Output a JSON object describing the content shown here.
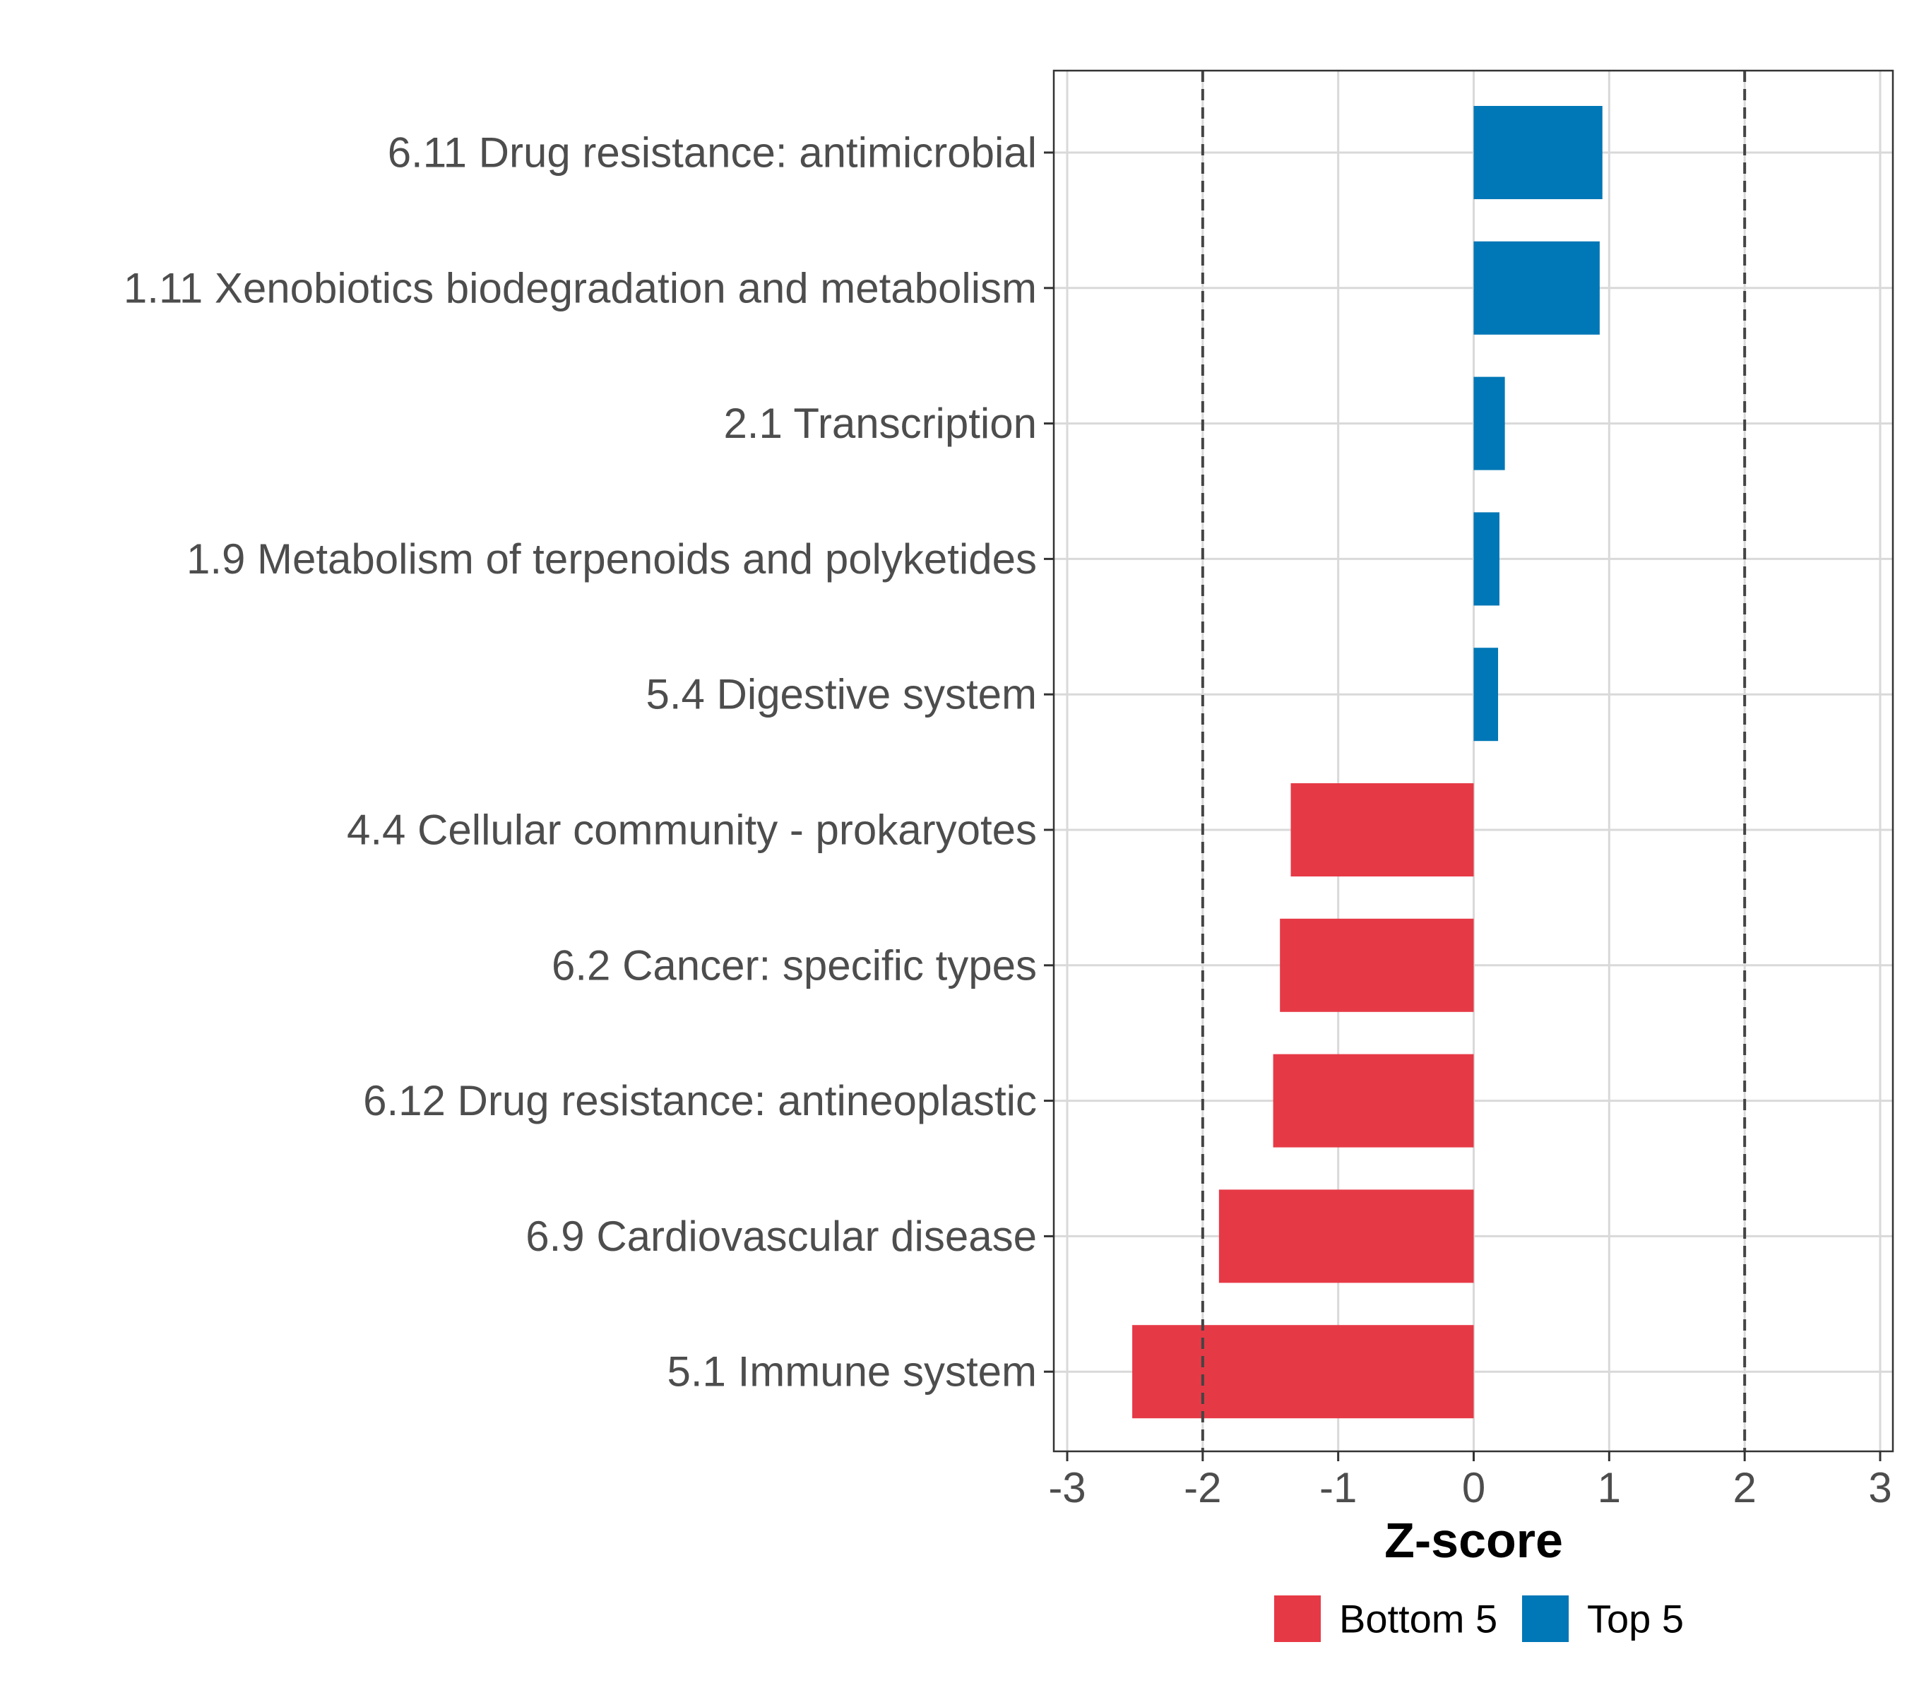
{
  "chart_data": {
    "type": "bar",
    "orientation": "horizontal",
    "title": "",
    "xlabel": "Z-score",
    "ylabel": "",
    "xlim": [
      -3,
      3
    ],
    "xticks": [
      "-3",
      "-2",
      "-1",
      "0",
      "1",
      "2",
      "3"
    ],
    "reference_lines": [
      -2,
      2
    ],
    "grid": true,
    "categories": [
      "6.11 Drug resistance: antimicrobial",
      "1.11 Xenobiotics biodegradation and metabolism",
      "2.1 Transcription",
      "1.9 Metabolism of terpenoids and polyketides",
      "5.4 Digestive system",
      "4.4 Cellular community - prokaryotes",
      "6.2 Cancer: specific types",
      "6.12 Drug resistance: antineoplastic",
      "6.9 Cardiovascular disease",
      "5.1 Immune system"
    ],
    "values": [
      0.95,
      0.93,
      0.23,
      0.19,
      0.18,
      -1.35,
      -1.43,
      -1.48,
      -1.88,
      -2.52
    ],
    "groups": [
      "Top 5",
      "Top 5",
      "Top 5",
      "Top 5",
      "Top 5",
      "Bottom 5",
      "Bottom 5",
      "Bottom 5",
      "Bottom 5",
      "Bottom 5"
    ],
    "legend": {
      "position": "bottom",
      "entries": [
        {
          "label": "Bottom 5",
          "color": "#e63946"
        },
        {
          "label": "Top 5",
          "color": "#0077b6"
        }
      ]
    }
  }
}
